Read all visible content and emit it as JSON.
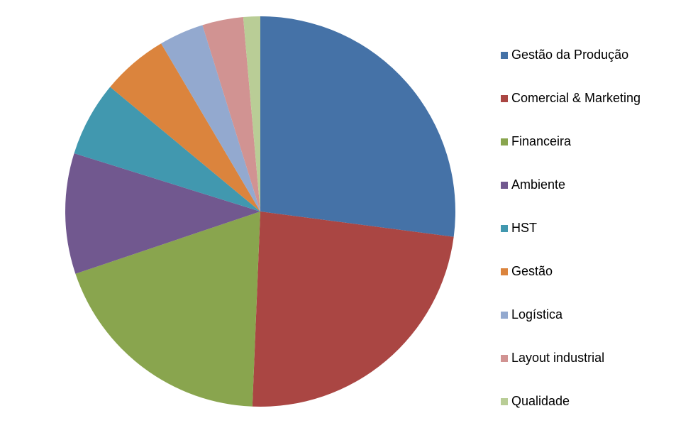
{
  "chart_data": {
    "type": "pie",
    "categories": [
      "Gestão da Produção",
      "Comercial & Marketing",
      "Financeira",
      "Ambiente",
      "HST",
      "Gestão",
      "Logística",
      "Layout industrial",
      "Qualidade"
    ],
    "values": [
      27.1,
      23.6,
      19.2,
      10,
      6.2,
      5.5,
      3.7,
      3.4,
      1.4
    ],
    "colors": [
      "#4572a7",
      "#aa4643",
      "#89a54e",
      "#71588f",
      "#4198af",
      "#db843d",
      "#93a9cf",
      "#d19392",
      "#b9cd96"
    ],
    "legend": "right"
  }
}
